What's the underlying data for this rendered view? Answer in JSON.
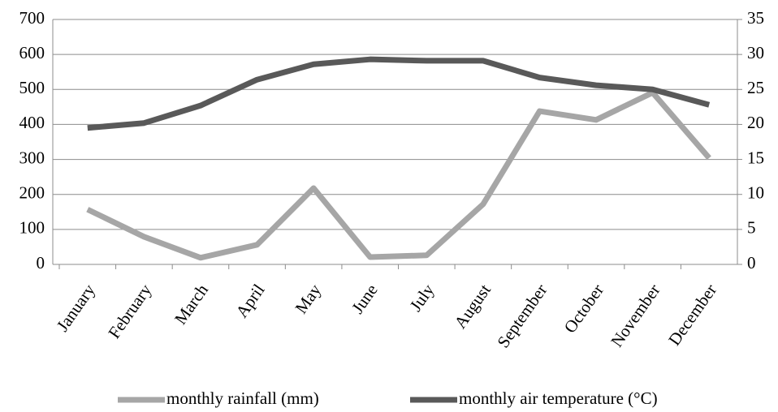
{
  "chart_data": {
    "type": "line",
    "categories": [
      "January",
      "February",
      "March",
      "April",
      "May",
      "June",
      "July",
      "August",
      "September",
      "October",
      "November",
      "December"
    ],
    "series": [
      {
        "name": "monthly rainfall (mm)",
        "color": "#a6a6a6",
        "values": [
          157,
          79,
          19,
          56,
          218,
          21,
          26,
          172,
          438,
          413,
          491,
          304
        ]
      },
      {
        "name": "monthly air temperature (°C)",
        "color": "#595959",
        "axis": "y2",
        "values": [
          19.5,
          20.2,
          22.7,
          26.4,
          28.6,
          29.3,
          29.1,
          29.1,
          26.7,
          25.6,
          25.0,
          22.8
        ]
      }
    ],
    "ylim": [
      0,
      700
    ],
    "yticks": [
      0,
      100,
      200,
      300,
      400,
      500,
      600,
      700
    ],
    "y2lim": [
      0,
      35
    ],
    "y2ticks": [
      0,
      5,
      10,
      15,
      20,
      25,
      30,
      35
    ],
    "grid": true,
    "legend": "bottom"
  }
}
